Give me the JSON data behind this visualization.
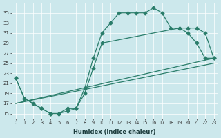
{
  "xlabel": "Humidex (Indice chaleur)",
  "background_color": "#cce8ec",
  "line_color": "#2a7d6a",
  "xlim": [
    -0.5,
    23.5
  ],
  "ylim": [
    14.0,
    37.0
  ],
  "yticks": [
    15,
    17,
    19,
    21,
    23,
    25,
    27,
    29,
    31,
    33,
    35
  ],
  "xticks": [
    0,
    1,
    2,
    3,
    4,
    5,
    6,
    7,
    8,
    9,
    10,
    11,
    12,
    13,
    14,
    15,
    16,
    17,
    18,
    19,
    20,
    21,
    22,
    23
  ],
  "curve1_x": [
    0,
    1,
    2,
    3,
    4,
    5,
    6,
    7,
    8,
    9,
    10,
    11,
    12,
    13,
    14,
    15,
    16,
    17,
    18,
    19,
    20,
    21,
    22,
    23
  ],
  "curve1_y": [
    22,
    18,
    17,
    16,
    15,
    15,
    15.5,
    16,
    20,
    26,
    31,
    33,
    35,
    35,
    35,
    35,
    36,
    35,
    32,
    32,
    31,
    29,
    26,
    26
  ],
  "curve2_x": [
    0,
    1,
    3,
    4,
    5,
    6,
    7,
    8,
    9,
    10,
    19,
    20,
    21,
    22,
    23
  ],
  "curve2_y": [
    22,
    18,
    16,
    15,
    15,
    16,
    16,
    19,
    24,
    29,
    32,
    32,
    32,
    31,
    26
  ],
  "line1_x": [
    0,
    23
  ],
  "line1_y": [
    17,
    26
  ],
  "line2_x": [
    0,
    23
  ],
  "line2_y": [
    17,
    25
  ]
}
